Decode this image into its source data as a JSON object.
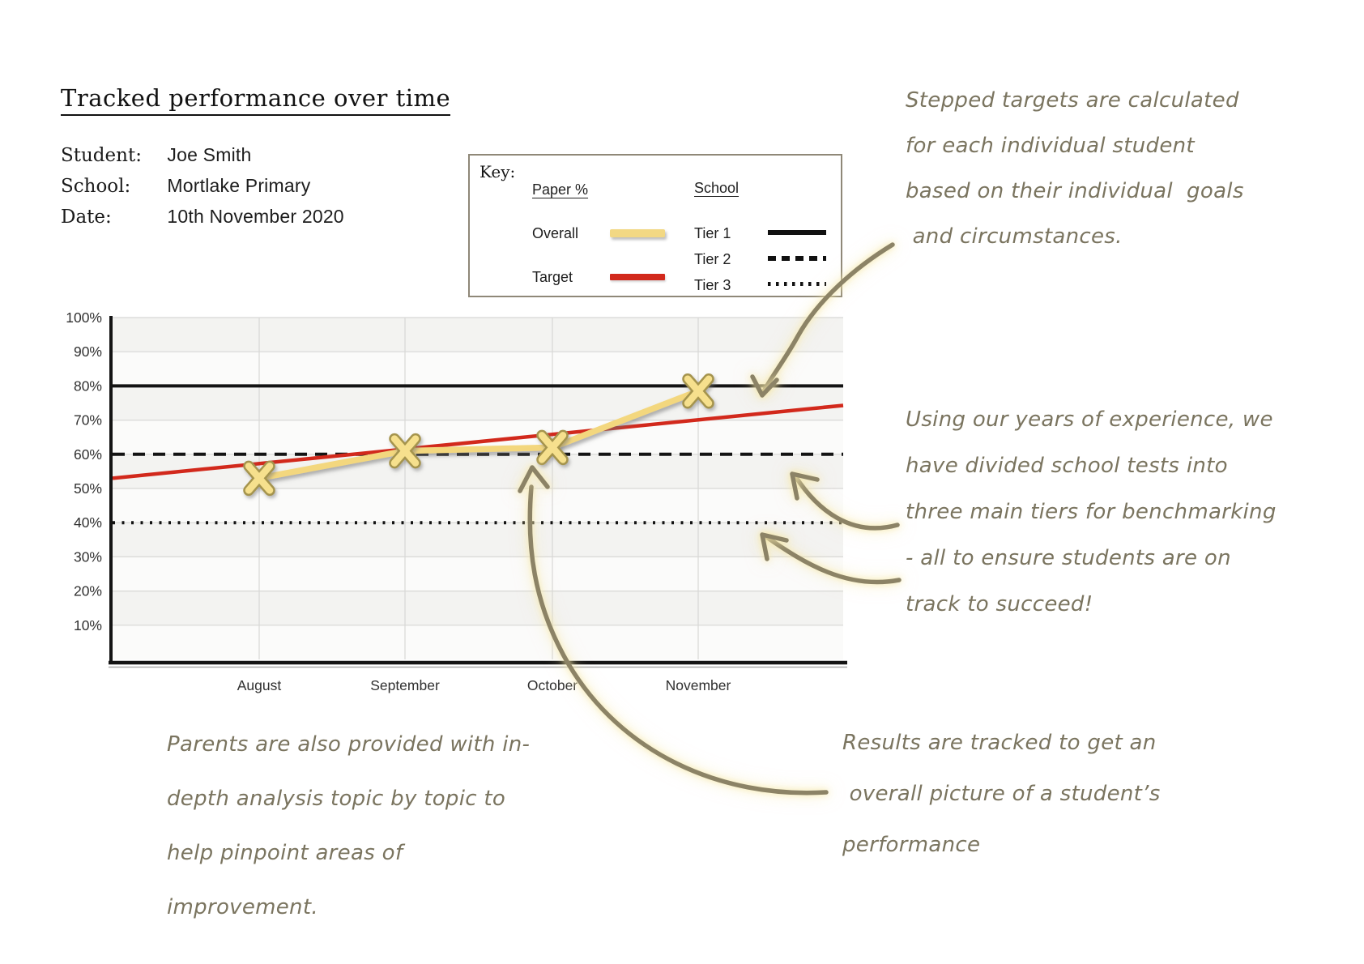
{
  "header": {
    "title": "Tracked performance over time",
    "info": [
      {
        "label": "Student:",
        "value": "Joe Smith"
      },
      {
        "label": "School:",
        "value": "Mortlake Primary"
      },
      {
        "label": "Date:",
        "value": "10th November 2020"
      }
    ]
  },
  "key": {
    "title": "Key:",
    "paper_header": "Paper %",
    "school_header": "School",
    "overall_label": "Overall",
    "target_label": "Target",
    "tier1_label": "Tier 1",
    "tier2_label": "Tier 2",
    "tier3_label": "Tier 3"
  },
  "chart_data": {
    "type": "line",
    "title": "Tracked performance over time",
    "categories": [
      "August",
      "September",
      "October",
      "November"
    ],
    "series": [
      {
        "name": "Overall",
        "values": [
          53,
          61,
          62,
          78.5
        ],
        "color": "#f3d77e",
        "marker": "x"
      },
      {
        "name": "Target",
        "trend_endpoints": [
          53,
          74.3
        ],
        "color": "#d2291c",
        "marker": "none"
      }
    ],
    "reference_lines": [
      {
        "name": "Tier 1",
        "value": 80,
        "style": "solid"
      },
      {
        "name": "Tier 2",
        "value": 60,
        "style": "dashed"
      },
      {
        "name": "Tier 3",
        "value": 40,
        "style": "dotted"
      }
    ],
    "yticks": [
      "100%",
      "90%",
      "80%",
      "70%",
      "60%",
      "50%",
      "40%",
      "30%",
      "20%",
      "10%"
    ],
    "ylim": [
      0,
      100
    ],
    "grid": true,
    "legend_position": "top-right key box"
  },
  "annotations": {
    "stepped": "Stepped targets are calculated\nfor each individual student\nbased on their individual  goals\n and circumstances.",
    "tiers": "Using our years of experience, we\nhave divided school tests into\nthree main tiers for benchmarking\n- all to ensure students are on\ntrack to succeed!",
    "parents": "Parents are also provided with in-\ndepth analysis topic by topic to\nhelp pinpoint areas of\nimprovement.",
    "results": "Results are tracked to get an\n overall picture of a student’s\nperformance"
  }
}
